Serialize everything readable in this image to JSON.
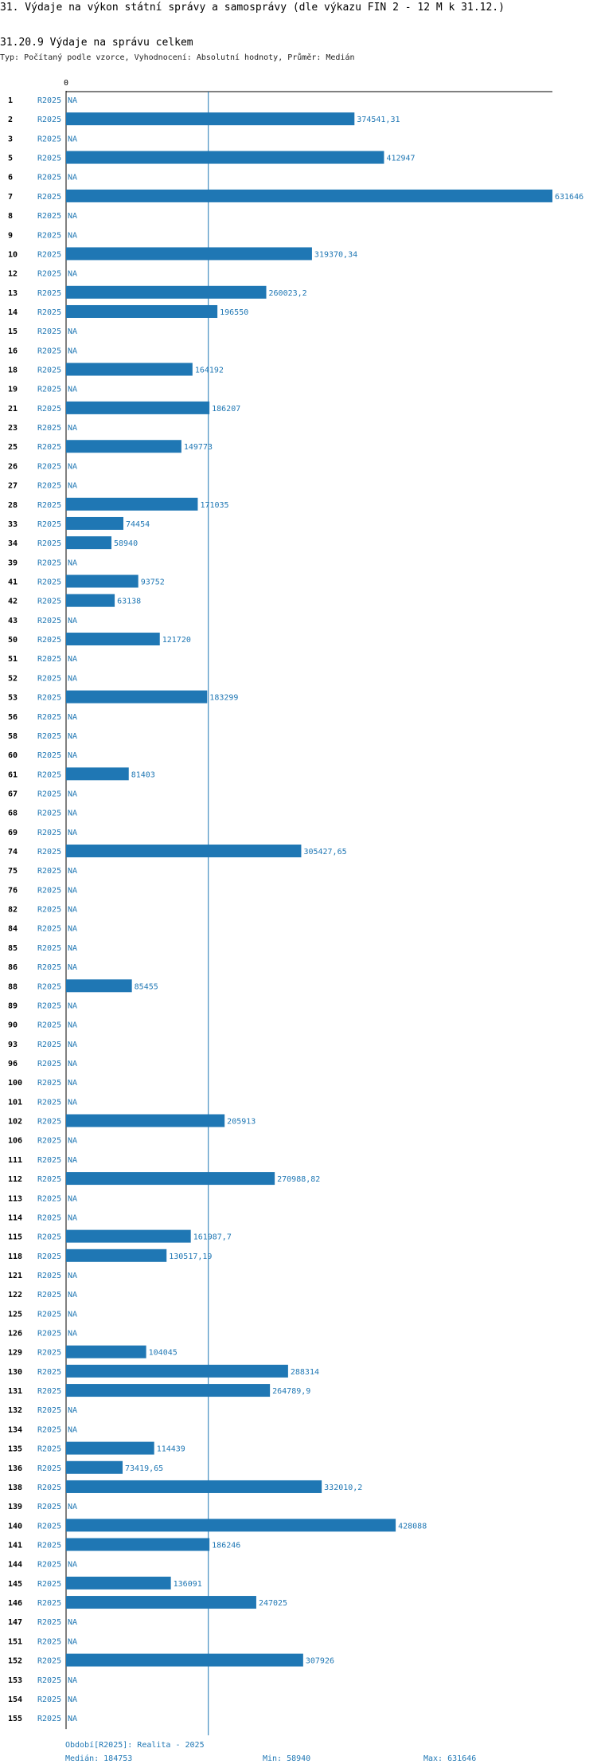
{
  "header": {
    "title": "31. Výdaje na výkon státní správy a samosprávy (dle výkazu FIN 2 - 12 M k 31.12.)",
    "subtitle": "31.20.9 Výdaje na správu celkem",
    "type_line": "Typ: Počítaný podle vzorce, Vyhodnocení: Absolutní hodnoty, Průměr: Medián"
  },
  "chart_data": {
    "type": "bar",
    "orientation": "horizontal",
    "axis_tick_label": "0",
    "period_label": "R2025",
    "na_label": "NA",
    "categories": [
      "1",
      "2",
      "3",
      "5",
      "6",
      "7",
      "8",
      "9",
      "10",
      "12",
      "13",
      "14",
      "15",
      "16",
      "18",
      "19",
      "21",
      "23",
      "25",
      "26",
      "27",
      "28",
      "33",
      "34",
      "39",
      "41",
      "42",
      "43",
      "50",
      "51",
      "52",
      "53",
      "56",
      "58",
      "60",
      "61",
      "67",
      "68",
      "69",
      "74",
      "75",
      "76",
      "82",
      "84",
      "85",
      "86",
      "88",
      "89",
      "90",
      "93",
      "96",
      "100",
      "101",
      "102",
      "106",
      "111",
      "112",
      "113",
      "114",
      "115",
      "118",
      "121",
      "122",
      "125",
      "126",
      "129",
      "130",
      "131",
      "132",
      "134",
      "135",
      "136",
      "138",
      "139",
      "140",
      "141",
      "144",
      "145",
      "146",
      "147",
      "151",
      "152",
      "153",
      "154",
      "155"
    ],
    "values": [
      null,
      374541.31,
      null,
      412947,
      null,
      631646,
      null,
      null,
      319370.34,
      null,
      260023.2,
      196550,
      null,
      null,
      164192,
      null,
      186207,
      null,
      149773,
      null,
      null,
      171035,
      74454,
      58940,
      null,
      93752,
      63138,
      null,
      121720,
      null,
      null,
      183299,
      null,
      null,
      null,
      81403,
      null,
      null,
      null,
      305427.65,
      null,
      null,
      null,
      null,
      null,
      null,
      85455,
      null,
      null,
      null,
      null,
      null,
      null,
      205913,
      null,
      null,
      270988.82,
      null,
      null,
      161987.7,
      130517.19,
      null,
      null,
      null,
      null,
      104045,
      288314,
      264789.9,
      null,
      null,
      114439,
      73419.65,
      332010.2,
      null,
      428088,
      186246,
      null,
      136091,
      247025,
      null,
      null,
      307926,
      null,
      null,
      null
    ],
    "value_labels": [
      "NA",
      "374541,31",
      "NA",
      "412947",
      "NA",
      "631646",
      "NA",
      "NA",
      "319370,34",
      "NA",
      "260023,2",
      "196550",
      "NA",
      "NA",
      "164192",
      "NA",
      "186207",
      "NA",
      "149773",
      "NA",
      "NA",
      "171035",
      "74454",
      "58940",
      "NA",
      "93752",
      "63138",
      "NA",
      "121720",
      "NA",
      "NA",
      "183299",
      "NA",
      "NA",
      "NA",
      "81403",
      "NA",
      "NA",
      "NA",
      "305427,65",
      "NA",
      "NA",
      "NA",
      "NA",
      "NA",
      "NA",
      "85455",
      "NA",
      "NA",
      "NA",
      "NA",
      "NA",
      "NA",
      "205913",
      "NA",
      "NA",
      "270988,82",
      "NA",
      "NA",
      "161987,7",
      "130517,19",
      "NA",
      "NA",
      "NA",
      "NA",
      "104045",
      "288314",
      "264789,9",
      "NA",
      "NA",
      "114439",
      "73419,65",
      "332010,2",
      "NA",
      "428088",
      "186246",
      "NA",
      "136091",
      "247025",
      "NA",
      "NA",
      "307926",
      "NA",
      "NA",
      "NA"
    ],
    "xlim": [
      0,
      631646
    ],
    "median": 184753,
    "min": 58940,
    "max": 631646,
    "colors": {
      "bar": "#1f77b4",
      "median_line": "#1f77b4",
      "axis": "#000000"
    },
    "footer": {
      "period_text": "Období[R2025]: Realita - 2025",
      "median_text": "Medián: 184753",
      "min_text": "Min: 58940",
      "max_text": "Max: 631646"
    }
  }
}
